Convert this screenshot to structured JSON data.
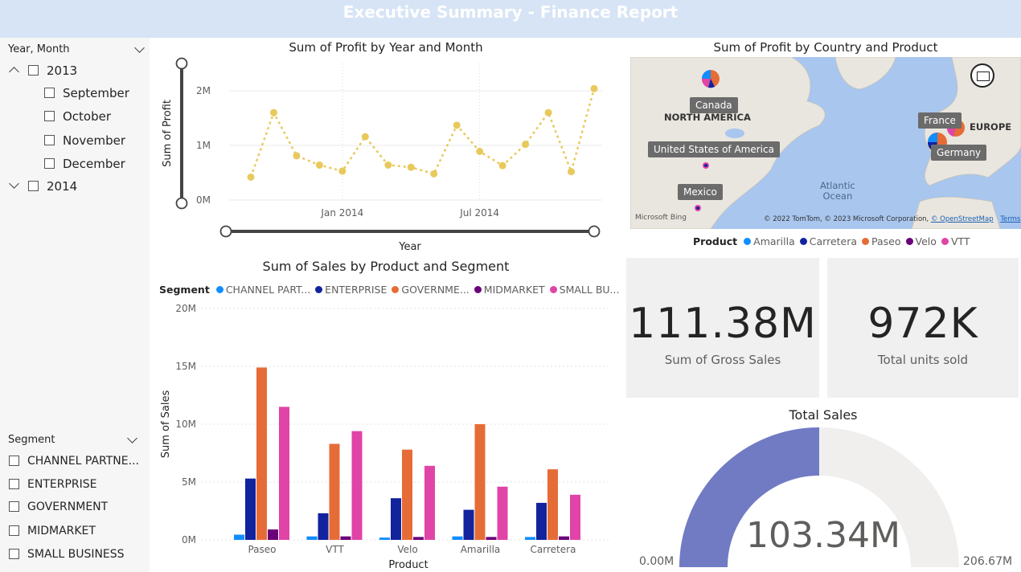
{
  "header": {
    "title": "Executive Summary - Finance Report"
  },
  "slicers": {
    "year_month": {
      "title": "Year, Month",
      "years": [
        {
          "label": "2013",
          "expanded": true,
          "months": [
            "September",
            "October",
            "November",
            "December"
          ]
        },
        {
          "label": "2014",
          "expanded": false,
          "months": []
        }
      ]
    },
    "segment": {
      "title": "Segment",
      "items": [
        "CHANNEL PARTNE...",
        "ENTERPRISE",
        "GOVERNMENT",
        "MIDMARKET",
        "SMALL BUSINESS"
      ]
    }
  },
  "profit_line_chart": {
    "title": "Sum of Profit by Year and Month",
    "chart_data": {
      "type": "line",
      "title": "Sum of Profit by Year and Month",
      "xlabel": "Year",
      "ylabel": "Sum of Profit",
      "x_tick_labels": [
        "Jan 2014",
        "Jul 2014"
      ],
      "y_tick_labels": [
        "0M",
        "1M",
        "2M"
      ],
      "ylim": [
        0,
        2.5
      ],
      "x": [
        "2013-09",
        "2013-10",
        "2013-11",
        "2013-12",
        "2014-01",
        "2014-02",
        "2014-03",
        "2014-04",
        "2014-05",
        "2014-06",
        "2014-07",
        "2014-08",
        "2014-09",
        "2014-10",
        "2014-11",
        "2014-12"
      ],
      "series": [
        {
          "values": [
            0.42,
            1.6,
            0.81,
            0.64,
            0.53,
            1.16,
            0.64,
            0.6,
            0.48,
            1.37,
            0.89,
            0.63,
            1.02,
            1.6,
            0.52,
            2.04
          ]
        }
      ],
      "color": "#e8c95c",
      "line_style": "dotted"
    }
  },
  "map": {
    "title": "Sum of Profit by Country and Product",
    "labels": [
      "Canada",
      "United States of America",
      "Mexico",
      "France",
      "Germany"
    ],
    "region_labels": [
      "NORTH AMERICA",
      "EUROPE"
    ],
    "water_labels": [
      "Atlantic",
      "Ocean"
    ],
    "brand": "Microsoft Bing",
    "copyright": "© 2022 TomTom, © 2023 Microsoft Corporation,",
    "osm": "© OpenStreetMap",
    "terms": "Terms",
    "focus_icon": "focus-mode-icon"
  },
  "product_legend": {
    "title": "Product",
    "items": [
      {
        "label": "Amarilla",
        "color": "#118dff"
      },
      {
        "label": "Carretera",
        "color": "#12239e"
      },
      {
        "label": "Paseo",
        "color": "#e66c37"
      },
      {
        "label": "Velo",
        "color": "#6b007b"
      },
      {
        "label": "VTT",
        "color": "#e044a7"
      }
    ]
  },
  "cards": {
    "gross_sales": {
      "value": "111.38M",
      "caption": "Sum of Gross Sales"
    },
    "units_sold": {
      "value": "972K",
      "caption": "Total units sold"
    }
  },
  "gauge": {
    "title": "Total Sales",
    "value_label": "103.34M",
    "min_label": "0.00M",
    "max_label": "206.67M",
    "value": 103.34,
    "min": 0,
    "max": 206.67,
    "fill_color": "#717bc4",
    "track_color": "#f0efee"
  },
  "sales_bar_chart": {
    "title": "Sum of Sales by Product and Segment",
    "legend_title": "Segment",
    "legend": [
      {
        "label": "CHANNEL PART...",
        "color": "#118dff"
      },
      {
        "label": "ENTERPRISE",
        "color": "#12239e"
      },
      {
        "label": "GOVERNME...",
        "color": "#e66c37"
      },
      {
        "label": "MIDMARKET",
        "color": "#6b007b"
      },
      {
        "label": "SMALL BU...",
        "color": "#e044a7"
      }
    ],
    "chart_data": {
      "type": "bar",
      "title": "Sum of Sales by Product and Segment",
      "xlabel": "Product",
      "ylabel": "Sum of Sales",
      "categories": [
        "Paseo",
        "VTT",
        "Velo",
        "Amarilla",
        "Carretera"
      ],
      "y_tick_labels": [
        "0M",
        "5M",
        "10M",
        "15M",
        "20M"
      ],
      "ylim": [
        0,
        20
      ],
      "series": [
        {
          "name": "CHANNEL PART...",
          "values": [
            0.45,
            0.3,
            0.2,
            0.3,
            0.25
          ]
        },
        {
          "name": "ENTERPRISE",
          "values": [
            5.3,
            2.3,
            3.6,
            2.6,
            3.2
          ]
        },
        {
          "name": "GOVERNME...",
          "values": [
            14.9,
            8.3,
            7.8,
            10.0,
            6.1
          ]
        },
        {
          "name": "MIDMARKET",
          "values": [
            0.9,
            0.3,
            0.25,
            0.25,
            0.3
          ]
        },
        {
          "name": "SMALL BU...",
          "values": [
            11.5,
            9.4,
            6.4,
            4.6,
            3.9
          ]
        }
      ]
    }
  }
}
